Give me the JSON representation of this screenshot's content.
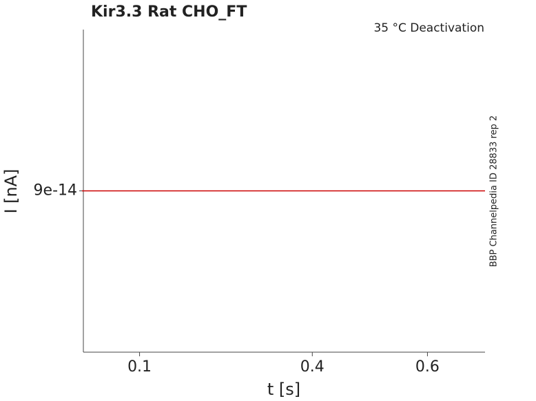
{
  "chart_data": {
    "type": "line",
    "title": "Kir3.3  Rat  CHO_FT",
    "annotation": "35 °C  Deactivation",
    "side_text": "BBP Channelpedia ID 28833 rep 2",
    "x_label": "t [s]",
    "y_label": "I [nA]",
    "x": [
      0,
      0.7
    ],
    "series": [
      {
        "color": "#cc0000",
        "values": [
          9e-14,
          9e-14
        ]
      }
    ],
    "xlim": [
      0,
      0.7
    ],
    "xticks": [
      0.1,
      0.4,
      0.6
    ],
    "ylim": [
      8e-14,
      1e-13
    ],
    "yticks": [
      9e-14
    ]
  }
}
